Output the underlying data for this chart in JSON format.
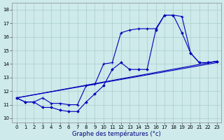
{
  "xlabel": "Graphe des températures (°c)",
  "bg_color": "#ceeaea",
  "grid_color": "#aacccc",
  "line_color": "#0000bb",
  "x_ticks": [
    0,
    1,
    2,
    3,
    4,
    5,
    6,
    7,
    8,
    9,
    10,
    11,
    12,
    13,
    14,
    15,
    16,
    17,
    18,
    19,
    20,
    21,
    22,
    23
  ],
  "y_ticks": [
    10,
    11,
    12,
    13,
    14,
    15,
    16,
    17,
    18
  ],
  "ylim": [
    9.7,
    18.5
  ],
  "xlim": [
    -0.5,
    23.5
  ],
  "diag1": {
    "x": [
      0,
      23
    ],
    "y": [
      11.5,
      14.2
    ]
  },
  "diag2": {
    "x": [
      0,
      23
    ],
    "y": [
      11.5,
      14.1
    ]
  },
  "curve_diamond_x": [
    0,
    1,
    2,
    3,
    4,
    5,
    6,
    7,
    8,
    9,
    10,
    11,
    12,
    13,
    14,
    15,
    16,
    17,
    18,
    19,
    20,
    21,
    22,
    23
  ],
  "curve_diamond_y": [
    11.5,
    11.2,
    11.2,
    10.8,
    10.8,
    10.6,
    10.5,
    10.5,
    11.2,
    11.8,
    12.4,
    13.6,
    14.1,
    13.6,
    13.6,
    13.6,
    16.5,
    17.6,
    17.6,
    16.3,
    14.8,
    14.1,
    14.1,
    14.2
  ],
  "curve_plus_x": [
    0,
    1,
    2,
    3,
    4,
    5,
    6,
    7,
    8,
    9,
    10,
    11,
    12,
    13,
    14,
    15,
    16,
    17,
    18,
    19,
    20,
    21,
    22,
    23
  ],
  "curve_plus_y": [
    11.5,
    11.2,
    11.2,
    11.5,
    11.1,
    11.1,
    11.0,
    11.0,
    12.4,
    12.5,
    14.0,
    14.1,
    16.3,
    16.5,
    16.6,
    16.6,
    16.6,
    17.6,
    17.6,
    17.5,
    14.8,
    14.1,
    14.1,
    14.2
  ]
}
